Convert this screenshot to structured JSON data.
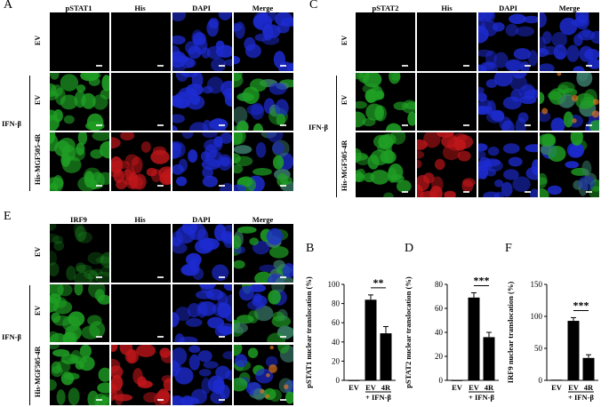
{
  "panels": {
    "A": {
      "letter": "A",
      "columns": [
        "pSTAT1",
        "His",
        "DAPI",
        "Merge"
      ],
      "rows": [
        "EV",
        "EV",
        "His-MGF505-4R"
      ],
      "group_label": "IFN-β"
    },
    "C": {
      "letter": "C",
      "columns": [
        "pSTAT2",
        "His",
        "DAPI",
        "Merge"
      ],
      "rows": [
        "EV",
        "EV",
        "His-MGF505-4R"
      ],
      "group_label": "IFN-β"
    },
    "E": {
      "letter": "E",
      "columns": [
        "IRF9",
        "His",
        "DAPI",
        "Merge"
      ],
      "rows": [
        "EV",
        "EV",
        "His-MGF505-4R"
      ],
      "group_label": "IFN-β"
    },
    "B": {
      "letter": "B"
    },
    "D": {
      "letter": "D"
    },
    "F": {
      "letter": "F"
    }
  },
  "colors": {
    "green_channel": "#1fa024",
    "red_channel": "#c0161a",
    "blue_channel": "#1d2bd0",
    "bar": "#000000"
  },
  "chart_data": [
    {
      "type": "bar",
      "panel": "B",
      "ylabel": "pSTAT1 nuclear translocation (%)",
      "ylim": [
        0,
        100
      ],
      "yticks": [
        0,
        20,
        40,
        60,
        80,
        100
      ],
      "categories": [
        "EV",
        "EV",
        "4R"
      ],
      "values": [
        0,
        84,
        49
      ],
      "errors": [
        0,
        5,
        7
      ],
      "treatment_label": "+ IFN-β",
      "significance": "**"
    },
    {
      "type": "bar",
      "panel": "D",
      "ylabel": "pSTAT2 nuclear translocation (%)",
      "ylim": [
        0,
        80
      ],
      "yticks": [
        0,
        20,
        40,
        60,
        80
      ],
      "categories": [
        "EV",
        "EV",
        "4R"
      ],
      "values": [
        0,
        69,
        36
      ],
      "errors": [
        0,
        4,
        4
      ],
      "treatment_label": "+ IFN-β",
      "significance": "***"
    },
    {
      "type": "bar",
      "panel": "F",
      "ylabel": "IRF9 nuclear translocation (%)",
      "ylim": [
        0,
        150
      ],
      "yticks": [
        0,
        50,
        100,
        150
      ],
      "categories": [
        "EV",
        "EV",
        "4R"
      ],
      "values": [
        1,
        93,
        35
      ],
      "errors": [
        0,
        5,
        5
      ],
      "treatment_label": "+ IFN-β",
      "significance": "***"
    }
  ]
}
